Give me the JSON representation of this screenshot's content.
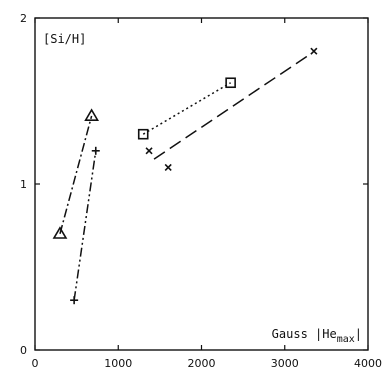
{
  "chart_data": {
    "type": "scatter",
    "ylabel": "[Si/H]",
    "xlabel": "Gauss |He",
    "xlabel_sub": "max",
    "xlabel_end": "|",
    "xlim": [
      0,
      4000
    ],
    "ylim": [
      0,
      2
    ],
    "xticks": [
      0,
      1000,
      2000,
      3000,
      4000
    ],
    "yticks": [
      0,
      1,
      2
    ],
    "xtick_labels": [
      "0",
      "1000",
      "2000",
      "3000",
      "4000"
    ],
    "ytick_labels": [
      "0",
      "1",
      "2"
    ],
    "grid": false,
    "series": [
      {
        "marker": "triangle",
        "dash": "dash-dot",
        "points": [
          {
            "x": 300,
            "y": 0.7
          },
          {
            "x": 680,
            "y": 1.41
          }
        ]
      },
      {
        "marker": "plus",
        "dash": "dash-dot-dot",
        "points": [
          {
            "x": 470,
            "y": 0.3
          },
          {
            "x": 730,
            "y": 1.2
          }
        ]
      },
      {
        "marker": "square",
        "dash": "dotted",
        "points": [
          {
            "x": 1300,
            "y": 1.3
          },
          {
            "x": 2350,
            "y": 1.61
          }
        ]
      },
      {
        "marker": "cross",
        "dash": "long-dash",
        "line": [
          {
            "x": 1430,
            "y": 1.15
          },
          {
            "x": 3300,
            "y": 1.78
          }
        ],
        "points": [
          {
            "x": 1370,
            "y": 1.2
          },
          {
            "x": 1600,
            "y": 1.1
          },
          {
            "x": 3350,
            "y": 1.8
          }
        ]
      }
    ]
  }
}
